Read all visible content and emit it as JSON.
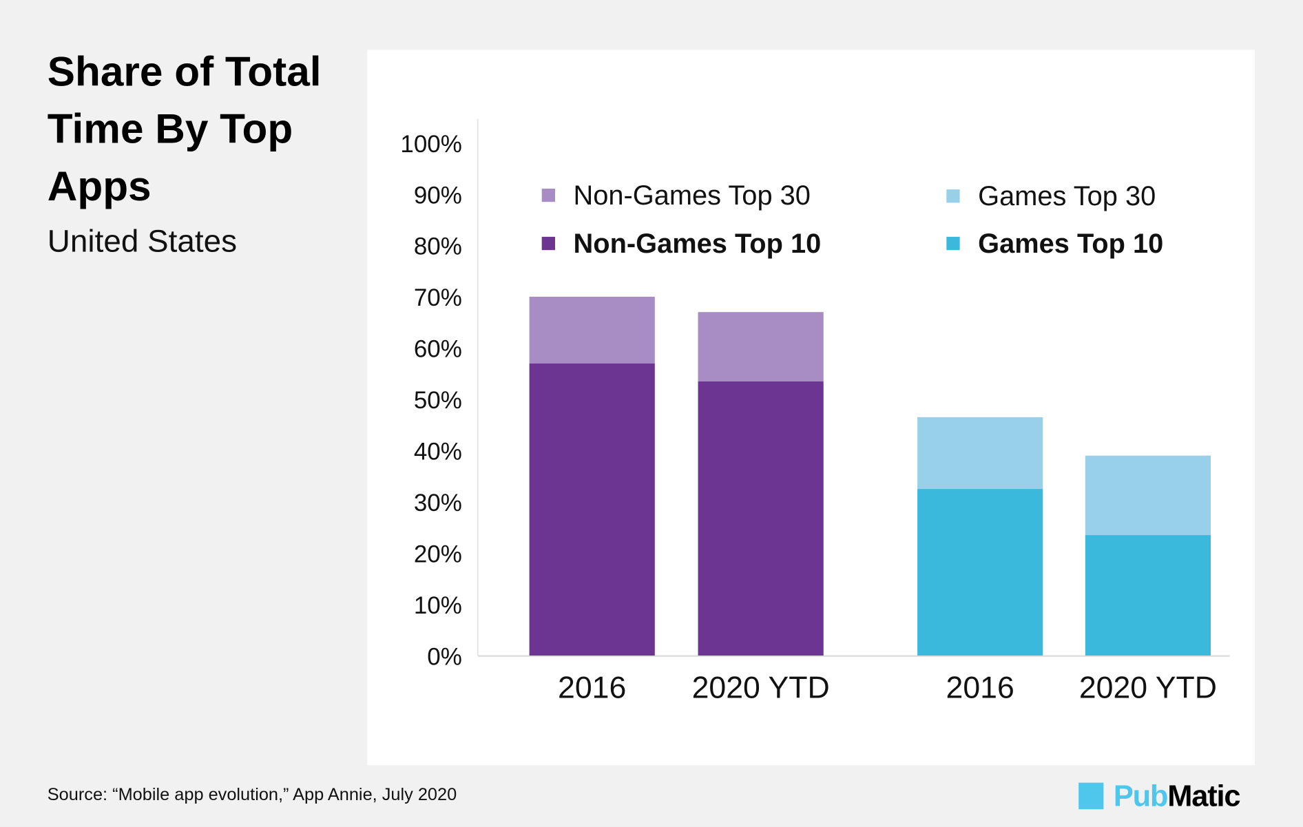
{
  "header": {
    "title": "Share of Total Time By Top Apps",
    "subtitle": "United States"
  },
  "footer": {
    "source": "Source: “Mobile app evolution,” App Annie, July 2020",
    "logo_text_1": "Pub",
    "logo_text_2": "Matic"
  },
  "chart_data": {
    "type": "bar",
    "stacked": true,
    "title": "Share of Total Time By Top Apps",
    "subtitle": "United States",
    "categories": [
      "2016",
      "2020 YTD",
      "2016",
      "2020 YTD"
    ],
    "groups": [
      "Non-Games",
      "Non-Games",
      "Games",
      "Games"
    ],
    "series": [
      {
        "name": "Top 10",
        "values": [
          57,
          53.5,
          32.5,
          23.5
        ]
      },
      {
        "name": "Top 30 (additional)",
        "values": [
          13,
          13.5,
          14,
          15.5
        ]
      }
    ],
    "legend": [
      {
        "label": "Non-Games Top 30",
        "color": "#a78dc3",
        "bold": false
      },
      {
        "label": "Non-Games Top 10",
        "color": "#6b3591",
        "bold": true
      },
      {
        "label": "Games Top 30",
        "color": "#98d0e9",
        "bold": false
      },
      {
        "label": "Games Top 10",
        "color": "#3bb9dd",
        "bold": true
      }
    ],
    "colors": {
      "nongames_top10": "#6b3591",
      "nongames_top30": "#a78dc3",
      "games_top10": "#3bb9dd",
      "games_top30": "#98d0e9"
    },
    "yticks": [
      "0%",
      "10%",
      "20%",
      "30%",
      "40%",
      "50%",
      "60%",
      "70%",
      "80%",
      "90%",
      "100%"
    ],
    "ylim": [
      0,
      100
    ],
    "xlabel": "",
    "ylabel": "",
    "grid": false,
    "legend_position": "top"
  }
}
